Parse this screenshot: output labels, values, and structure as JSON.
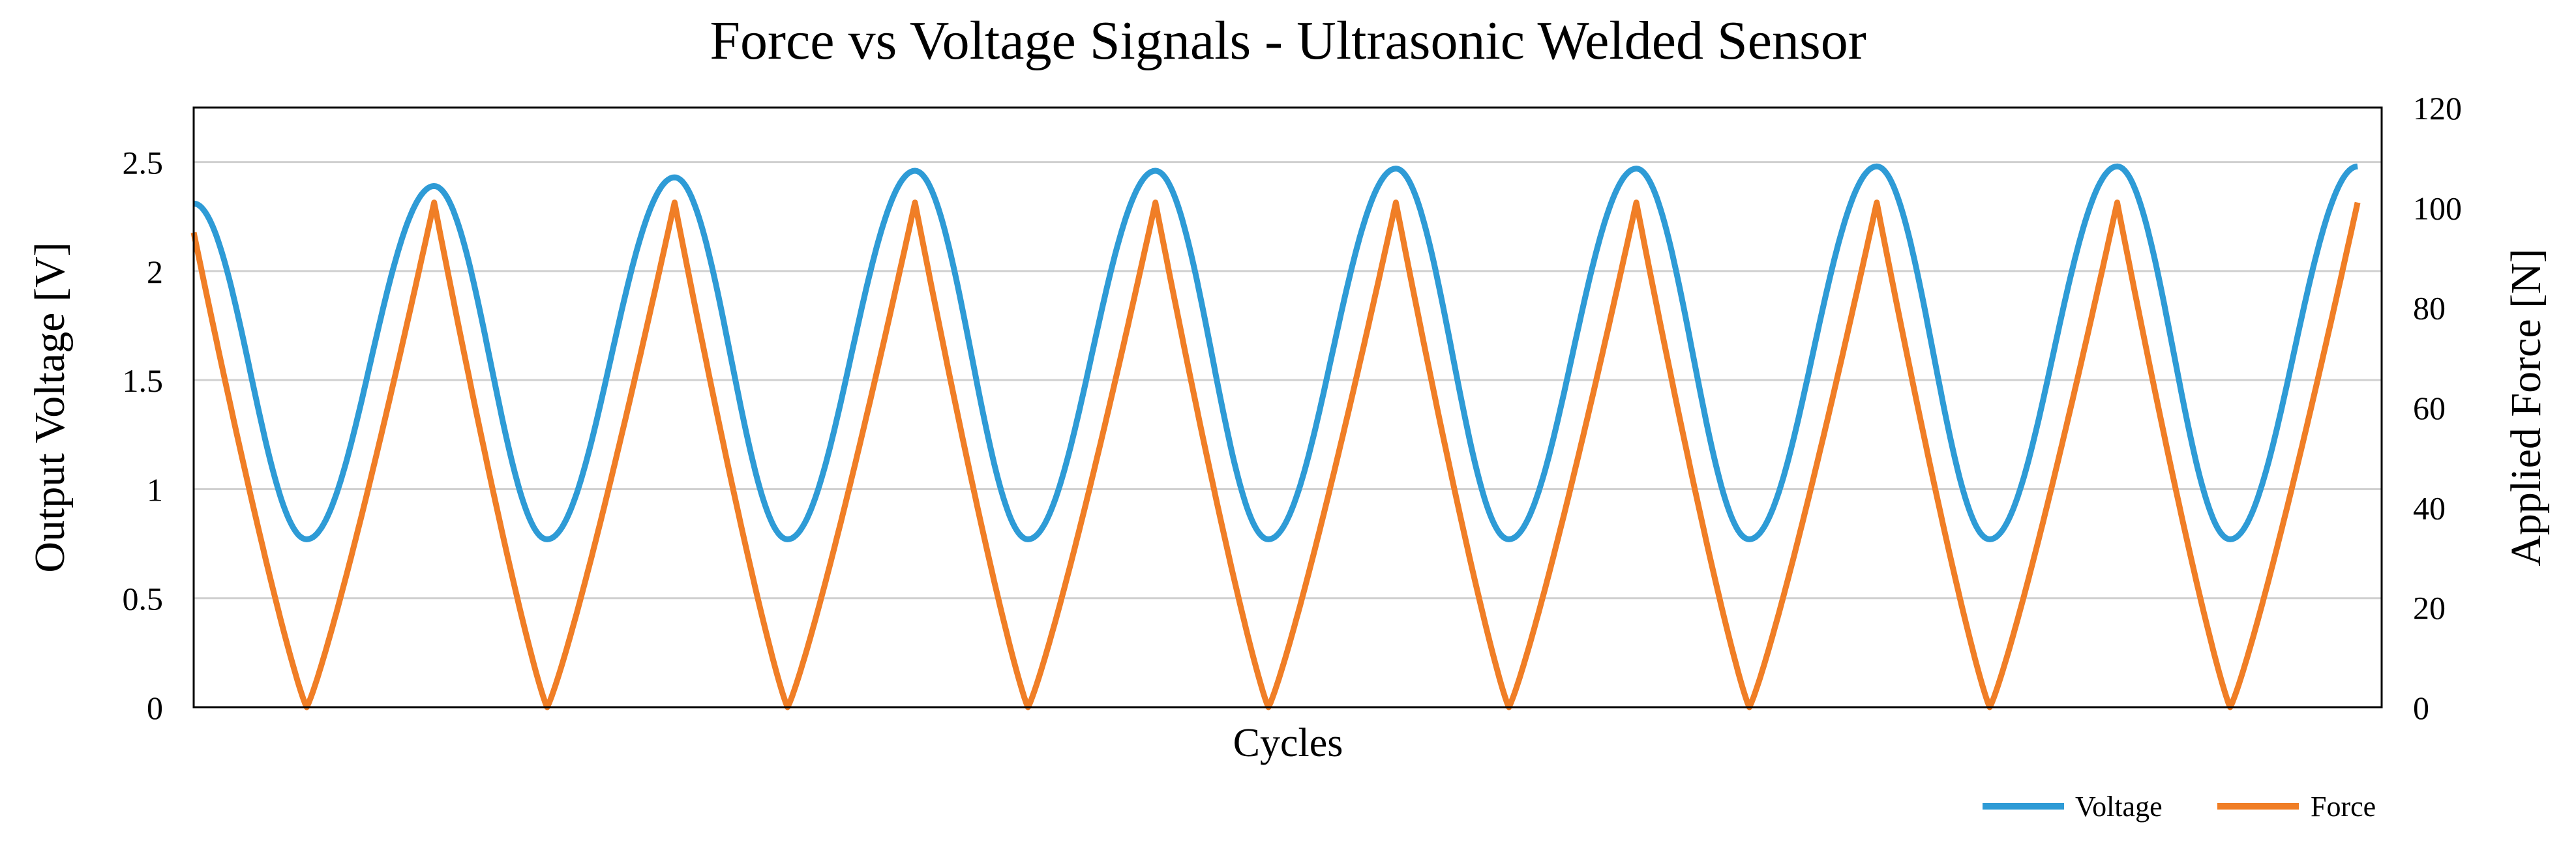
{
  "chart_data": {
    "type": "line",
    "title": "Force vs Voltage Signals - Ultrasonic Welded Sensor",
    "xlabel": "Cycles",
    "ylabel_left": "Output Voltage [V]",
    "ylabel_right": "Applied Force [N]",
    "xlim": [
      0,
      9.1
    ],
    "ylim_left": [
      0,
      2.75
    ],
    "ylim_right": [
      0,
      120
    ],
    "yticks_left": [
      "0",
      "0.5",
      "1",
      "1.5",
      "2",
      "2.5"
    ],
    "yticks_right": [
      "0",
      "20",
      "40",
      "60",
      "80",
      "100",
      "120"
    ],
    "grid": true,
    "legend_position": "bottom-right",
    "cycles": 9,
    "series": [
      {
        "name": "Voltage",
        "axis": "left",
        "color": "#2E9BD6",
        "min": 0.77,
        "max": [
          2.39,
          2.43,
          2.46,
          2.46,
          2.47,
          2.47,
          2.48,
          2.48,
          2.48
        ],
        "peak_x": [
          1,
          2,
          3,
          4,
          5,
          6,
          7,
          8,
          9
        ],
        "trough_x": [
          0.47,
          1.47,
          2.47,
          3.47,
          4.47,
          5.47,
          6.47,
          7.47,
          8.47
        ],
        "start_value": 2.31
      },
      {
        "name": "Force",
        "axis": "right",
        "color": "#F07E26",
        "min": 0,
        "max": 101,
        "peak_x": [
          1,
          2,
          3,
          4,
          5,
          6,
          7,
          8,
          9
        ],
        "trough_x": [
          0.47,
          1.47,
          2.47,
          3.47,
          4.47,
          5.47,
          6.47,
          7.47,
          8.47
        ],
        "start_value": 95
      }
    ]
  }
}
